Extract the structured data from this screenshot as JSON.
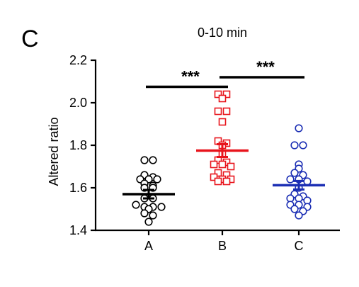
{
  "panel_letter": "C",
  "chart_data": {
    "type": "scatter",
    "title": "0-10 min",
    "xlabel": "",
    "ylabel": "Altered ratio",
    "ylim": [
      1.4,
      2.2
    ],
    "yticks": [
      "1.4",
      "1.6",
      "1.8",
      "2.0",
      "2.2"
    ],
    "categories": [
      "A",
      "B",
      "C"
    ],
    "grid": false,
    "legend": "none",
    "groups": [
      {
        "category": "A",
        "marker": "circle",
        "color": "#000000",
        "mean": 1.57,
        "sem": 0.02,
        "values": [
          1.73,
          1.73,
          1.66,
          1.65,
          1.64,
          1.64,
          1.64,
          1.62,
          1.61,
          1.6,
          1.6,
          1.55,
          1.55,
          1.52,
          1.51,
          1.51,
          1.51,
          1.5,
          1.48,
          1.47,
          1.44
        ]
      },
      {
        "category": "B",
        "marker": "square",
        "color": "#e8141c",
        "mean": 1.775,
        "sem": 0.03,
        "values": [
          2.04,
          2.04,
          2.02,
          1.96,
          1.96,
          1.91,
          1.82,
          1.81,
          1.8,
          1.76,
          1.73,
          1.72,
          1.71,
          1.71,
          1.7,
          1.67,
          1.66,
          1.65,
          1.64,
          1.64,
          1.63,
          1.63
        ]
      },
      {
        "category": "C",
        "marker": "circle",
        "color": "#1c2fb4",
        "mean": 1.612,
        "sem": 0.02,
        "values": [
          1.88,
          1.8,
          1.8,
          1.71,
          1.69,
          1.67,
          1.66,
          1.64,
          1.64,
          1.63,
          1.6,
          1.57,
          1.56,
          1.55,
          1.55,
          1.54,
          1.52,
          1.52,
          1.51,
          1.5,
          1.49,
          1.47
        ]
      }
    ],
    "annotations": [
      {
        "text": "***",
        "from": "A",
        "to": "B",
        "level": 2.075
      },
      {
        "text": "***",
        "from": "B",
        "to": "C",
        "level": 2.12
      }
    ]
  }
}
